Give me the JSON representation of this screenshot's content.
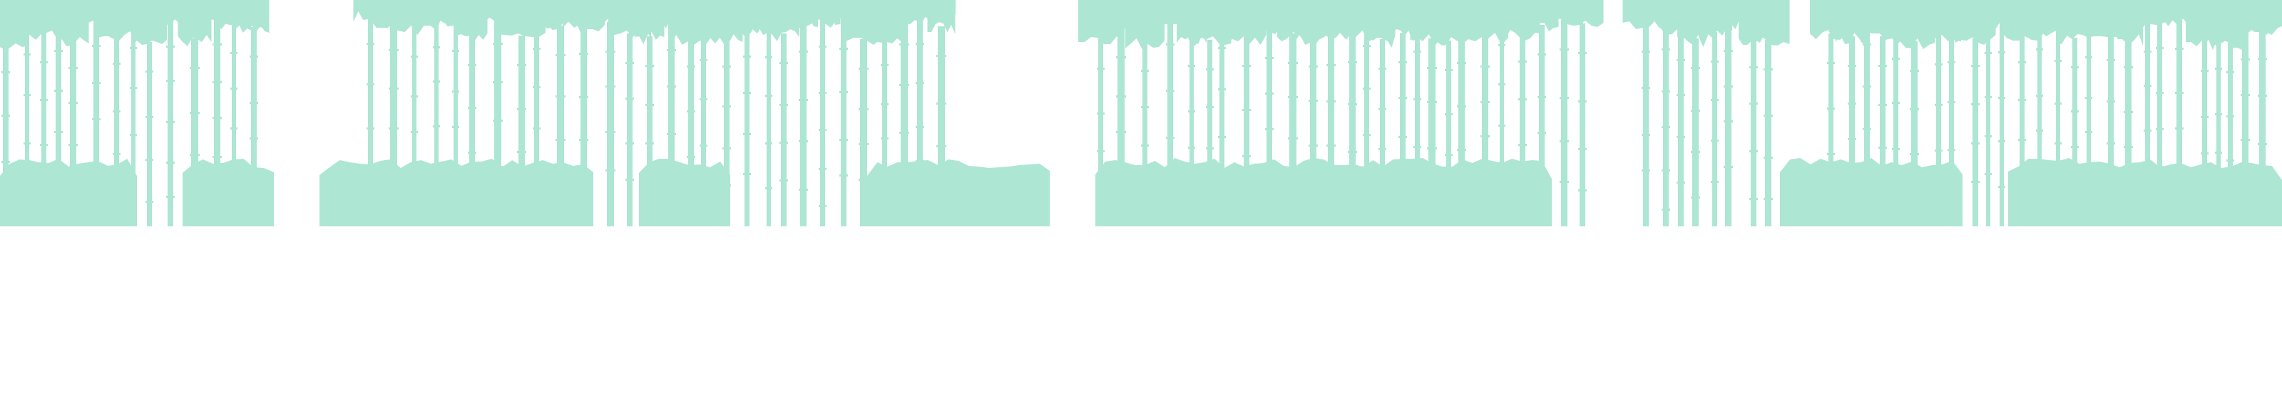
{
  "scene": {
    "description_free_layer": "bamboo-forest-silhouette",
    "colors": {
      "background": "#ffffff",
      "foliage": "#ade6d3"
    },
    "icons": {
      "stalk": "bamboo-stalk-shape",
      "canopy": "bamboo-canopy-shape",
      "bush": "bush-shape"
    }
  }
}
